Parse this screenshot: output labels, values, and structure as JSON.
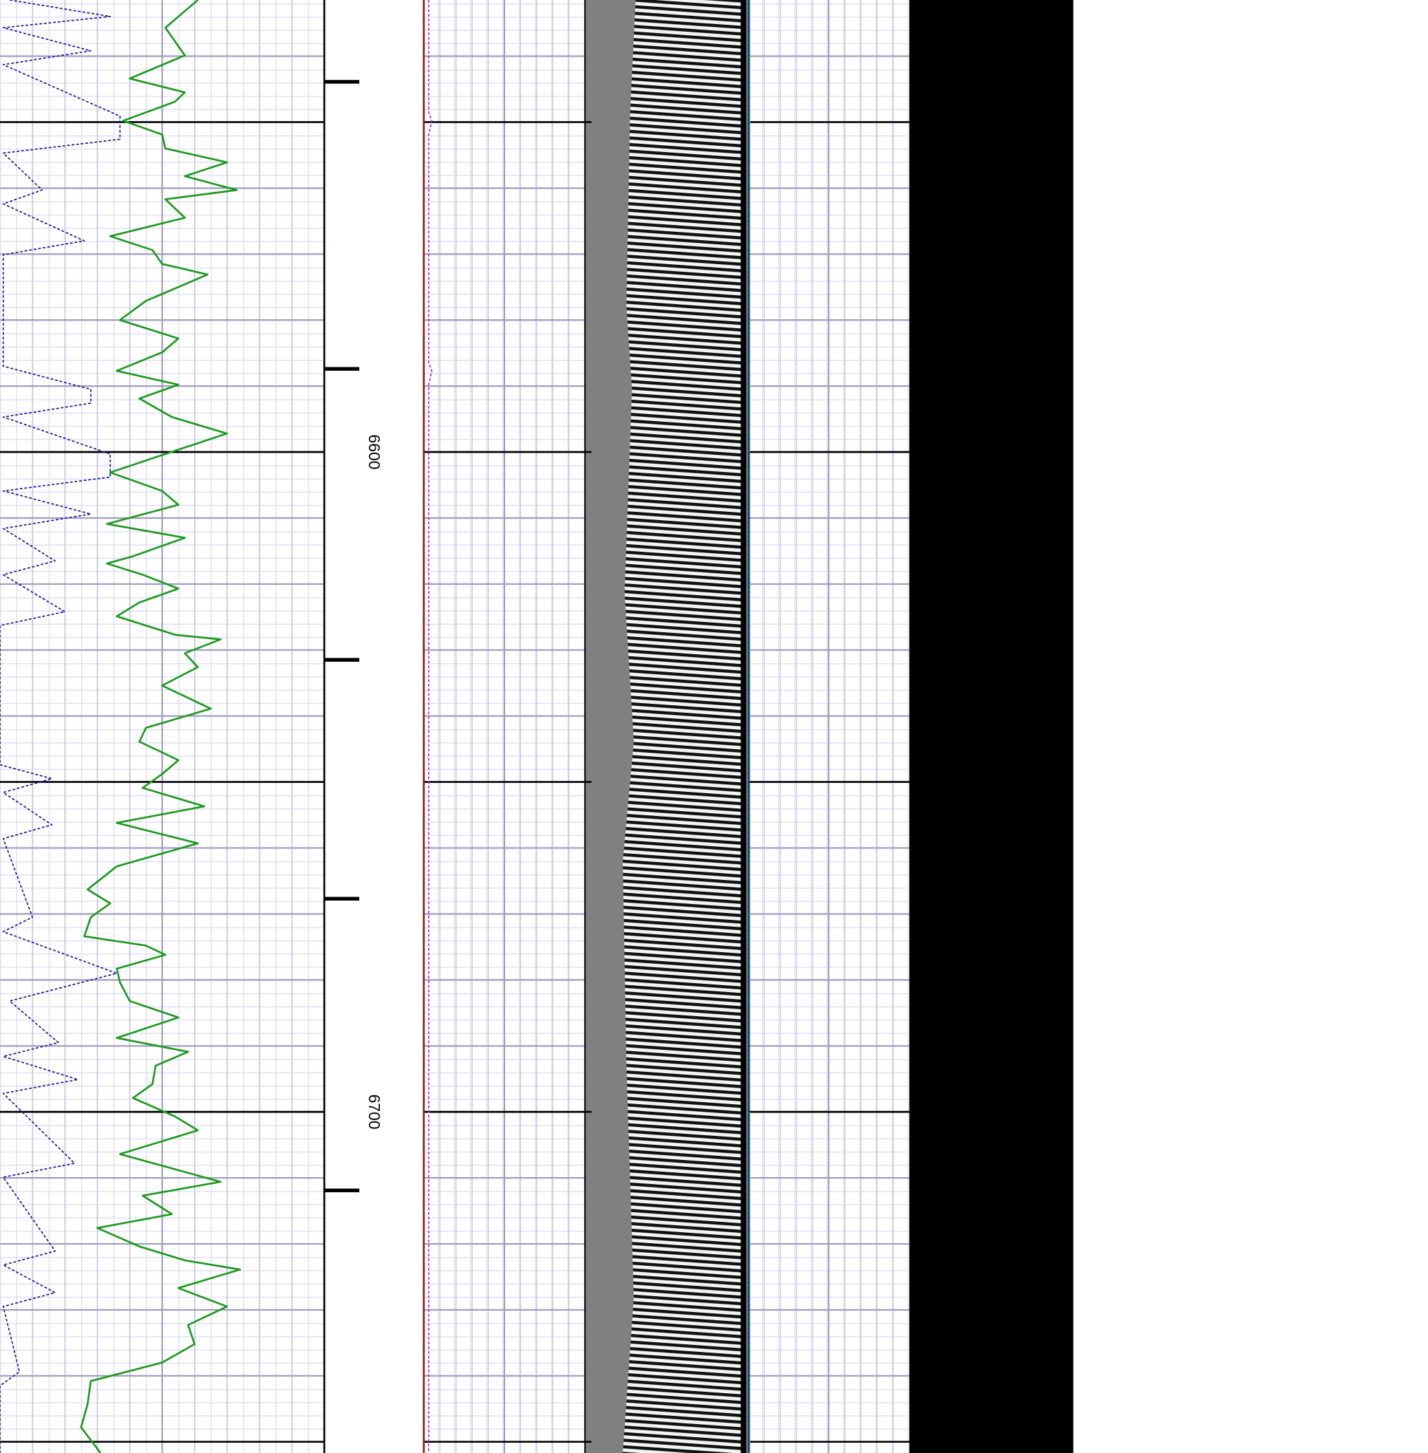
{
  "chart_data": {
    "type": "well_log",
    "ylim": [
      6531.5,
      6751.7
    ],
    "yticks": [
      6600,
      6700
    ],
    "grid_major": [
      6550,
      6600,
      6650,
      6700,
      6750
    ],
    "grid_minor": [
      6540,
      6560,
      6570,
      6580,
      6590,
      6610,
      6620,
      6630,
      6640,
      6660,
      6670,
      6680,
      6690,
      6710,
      6720,
      6730,
      6740
    ],
    "markers": [
      6543.9,
      6587.4,
      6631.5,
      6667.7,
      6711.9
    ],
    "tracks": [
      {
        "xlim": [
          0,
          10
        ],
        "xgrid": [
          1,
          2,
          3,
          4,
          6,
          7,
          8,
          9
        ],
        "xgrid_major": [
          5
        ],
        "series": [
          {
            "color": "#1a9a1a",
            "dashed": false,
            "depth": [
              6531.5,
              6535.7,
              6539.9,
              6543.4,
              6545.5,
              6546.9,
              6549.8,
              6551.9,
              6554.0,
              6556.1,
              6558.2,
              6560.3,
              6561.7,
              6564.5,
              6567.3,
              6569.4,
              6571.5,
              6573.1,
              6575.0,
              6577.1,
              6580.0,
              6582.8,
              6584.9,
              6587.7,
              6589.8,
              6591.9,
              6594.7,
              6597.2,
              6600.3,
              6603.1,
              6605.9,
              6608.0,
              6610.9,
              6613.0,
              6615.8,
              6616.9,
              6618.6,
              6620.7,
              6622.8,
              6624.9,
              6627.7,
              6628.4,
              6630.5,
              6632.6,
              6635.4,
              6638.9,
              6641.8,
              6643.9,
              6646.7,
              6648.8,
              6650.9,
              6653.7,
              6656.2,
              6659.3,
              6662.8,
              6666.3,
              6668.4,
              6670.5,
              6673.4,
              6674.8,
              6676.2,
              6678.3,
              6680.4,
              6683.2,
              6685.7,
              6688.8,
              6690.9,
              6693.0,
              6695.8,
              6697.9,
              6700.7,
              6702.8,
              6706.4,
              6710.6,
              6712.7,
              6715.5,
              6717.6,
              6720.4,
              6722.5,
              6723.9,
              6726.7,
              6729.5,
              6732.3,
              6735.2,
              6738.0,
              6740.8,
              6744.3,
              6747.8,
              6751.7
            ],
            "values": [
              6.1,
              5.1,
              5.7,
              4.0,
              5.7,
              5.4,
              3.8,
              5.0,
              5.1,
              7.0,
              5.7,
              7.3,
              5.1,
              5.7,
              3.4,
              4.7,
              5.0,
              6.4,
              5.5,
              4.5,
              3.7,
              5.5,
              5.0,
              3.6,
              5.5,
              4.3,
              5.3,
              7.0,
              5.1,
              3.4,
              5.0,
              5.5,
              3.3,
              5.7,
              4.1,
              3.3,
              4.4,
              5.5,
              4.3,
              3.6,
              5.4,
              6.8,
              5.7,
              6.1,
              5.0,
              6.5,
              4.5,
              4.3,
              5.5,
              5.0,
              4.4,
              6.3,
              3.6,
              6.1,
              3.6,
              2.7,
              3.4,
              2.8,
              2.6,
              4.5,
              5.1,
              3.6,
              3.7,
              4.0,
              5.5,
              3.6,
              5.8,
              4.8,
              4.7,
              4.1,
              5.4,
              6.1,
              3.7,
              6.8,
              4.4,
              5.3,
              3.0,
              4.3,
              5.7,
              7.4,
              5.5,
              7.0,
              5.8,
              6.0,
              5.0,
              2.8,
              2.7,
              2.5,
              3.1
            ]
          },
          {
            "color": "#1a1aa0",
            "dashed": true,
            "depth": [
              6531.5,
              6534.0,
              6535.7,
              6539.2,
              6541.3,
              6549.1,
              6552.6,
              6554.7,
              6560.3,
              6562.4,
              6568.0,
              6570.1,
              6587.0,
              6590.5,
              6592.6,
              6594.7,
              6600.3,
              6603.8,
              6605.9,
              6609.4,
              6611.6,
              6616.5,
              6618.6,
              6624.2,
              6626.3,
              6647.4,
              6649.5,
              6651.6,
              6656.5,
              6658.6,
              6670.5,
              6672.7,
              6679.0,
              6683.2,
              6689.5,
              6691.6,
              6695.1,
              6697.2,
              6707.8,
              6709.9,
              6721.1,
              6723.2,
              6727.4,
              6729.5,
              6739.4,
              6741.5,
              6751.7
            ],
            "values": [
              0.3,
              3.4,
              0.1,
              2.8,
              0.1,
              3.7,
              3.7,
              0.1,
              1.3,
              0.1,
              2.6,
              0.1,
              0.1,
              2.8,
              2.8,
              0.1,
              3.4,
              3.4,
              0.1,
              2.8,
              0.1,
              1.7,
              0.1,
              2.0,
              0,
              0,
              1.6,
              0.1,
              1.6,
              0.1,
              1.0,
              0.1,
              3.6,
              0.3,
              1.8,
              0.1,
              2.4,
              0.1,
              2.3,
              0.1,
              1.7,
              0.1,
              1.7,
              0.1,
              0.6,
              0,
              0
            ]
          }
        ]
      },
      {
        "xlim": [
          0,
          10
        ],
        "xgrid": [
          1,
          2,
          3,
          4,
          6,
          7,
          8,
          9
        ],
        "xgrid_major": [
          5
        ],
        "series": [
          {
            "color": "#8b1a1a",
            "dashed": false,
            "depth": [
              6531.5,
              6751.7
            ],
            "values": [
              0,
              0
            ]
          },
          {
            "color": "#c020c0",
            "dashed": true,
            "depth": [
              6531.5,
              6548.5,
              6549.8,
              6551.9,
              6586.4,
              6587.7,
              6589.8,
              6751.7
            ],
            "values": [
              0.3,
              0.3,
              0.5,
              0.3,
              0.3,
              0.5,
              0.3,
              0.3
            ]
          }
        ]
      },
      {
        "xlim": [
          0,
          10
        ],
        "xgrid": [
          1,
          2,
          3,
          4,
          6,
          7,
          8,
          9
        ],
        "xgrid_major": [
          5
        ],
        "series": [
          {
            "color": "#1a1aa0",
            "dashed": false,
            "depth": [
              6531.5,
              6751.7
            ],
            "values": [
              0.05,
              0.05
            ]
          },
          {
            "color": "#22cc22",
            "dashed": true,
            "depth": [
              6531.5,
              6751.7
            ],
            "values": [
              0.1,
              0.1
            ]
          }
        ]
      }
    ]
  }
}
